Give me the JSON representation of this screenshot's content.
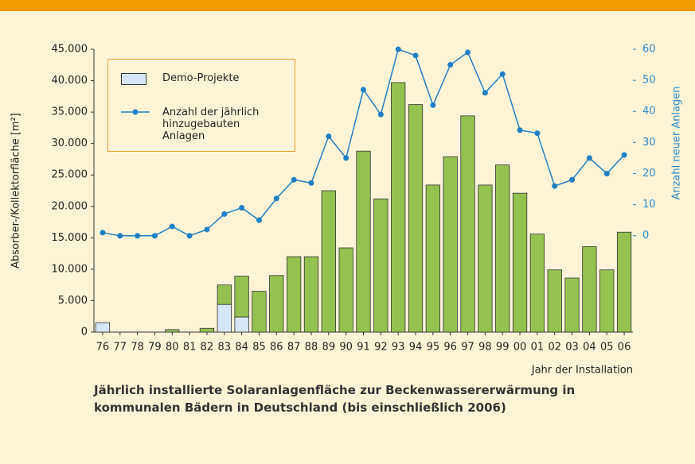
{
  "chart_data": {
    "type": "bar",
    "x_label": "Jahr der Installation",
    "y_label": "Absorber-/Kollektorfläche [m²]",
    "y2_label": "Anzahl neuer Anlagen",
    "caption": [
      "Jährlich installierte Solaranlagenfläche zur Beckenwassererwärmung in",
      "kommunalen Bädern in Deutschland (bis einschließlich 2006)"
    ],
    "categories": [
      "76",
      "77",
      "78",
      "79",
      "80",
      "81",
      "82",
      "83",
      "84",
      "85",
      "86",
      "87",
      "88",
      "89",
      "90",
      "91",
      "92",
      "93",
      "94",
      "95",
      "96",
      "97",
      "98",
      "99",
      "00",
      "01",
      "02",
      "03",
      "04",
      "05",
      "06"
    ],
    "series": [
      {
        "name": "Demo-Projekte",
        "type": "bar",
        "color": "#d8e7f6",
        "values": [
          1500,
          null,
          null,
          null,
          null,
          null,
          null,
          4400,
          2400,
          null,
          null,
          null,
          null,
          null,
          null,
          null,
          null,
          null,
          null,
          null,
          null,
          null,
          null,
          null,
          null,
          null,
          null,
          null,
          null,
          null,
          null
        ]
      },
      {
        "type": "bar",
        "color": "#94c150",
        "values": [
          null,
          null,
          null,
          null,
          400,
          null,
          600,
          3100,
          6500,
          6500,
          9000,
          12000,
          12000,
          22500,
          13400,
          28800,
          21200,
          39700,
          36200,
          23400,
          27900,
          34400,
          23400,
          26600,
          22100,
          15600,
          9900,
          8600,
          13600,
          9900,
          15900
        ]
      },
      {
        "name": "Anzahl der jährlich hinzugebauten Anlagen",
        "type": "line",
        "axis": "y2",
        "color": "#1f7fc2",
        "values": [
          1,
          0,
          0,
          0,
          3,
          0,
          2,
          7,
          9,
          5,
          12,
          18,
          17,
          32,
          25,
          47,
          39,
          60,
          58,
          42,
          55,
          59,
          46,
          52,
          34,
          33,
          16,
          18,
          25,
          20,
          26
        ]
      }
    ],
    "ylim": [
      0,
      45000
    ],
    "yticks": [
      0,
      {
        "value": 5000,
        "label": "5.000"
      },
      {
        "value": 10000,
        "label": "10.000"
      },
      {
        "value": 15000,
        "label": "15.000"
      },
      {
        "value": 20000,
        "label": "20.000"
      },
      {
        "value": 25000,
        "label": "25.000"
      },
      {
        "value": 30000,
        "label": "30.000"
      },
      {
        "value": 35000,
        "label": "35.000"
      },
      {
        "value": 40000,
        "label": "40.000"
      },
      {
        "value": 45000,
        "label": "45.000"
      }
    ],
    "y2lim": [
      -31,
      60
    ],
    "y2ticks": [
      0,
      10,
      20,
      30,
      40,
      50,
      60
    ]
  }
}
